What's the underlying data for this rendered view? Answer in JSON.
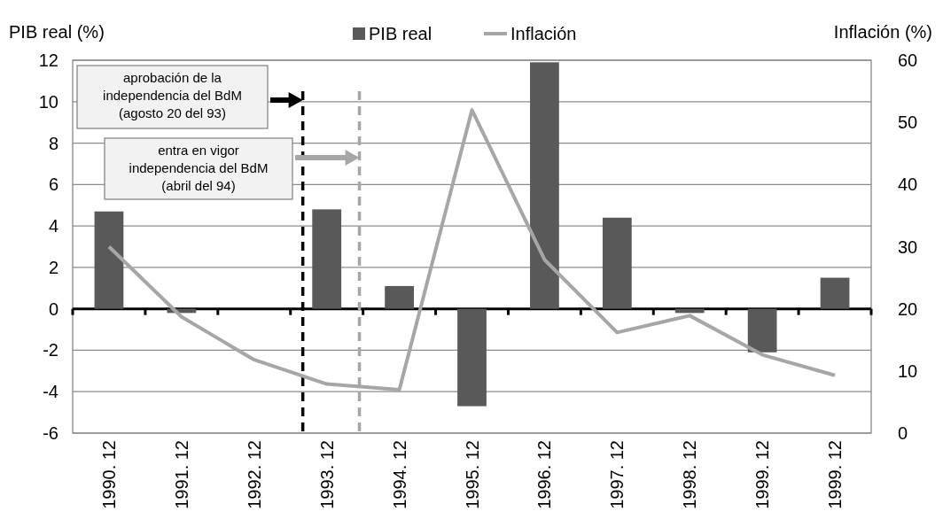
{
  "chart_data": {
    "type": "bar",
    "ylabel": "PIB  real (%)",
    "y2label": "Inflación (%)",
    "categories": [
      "1990. 12",
      "1991. 12",
      "1992. 12",
      "1993. 12",
      "1994. 12",
      "1995. 12",
      "1996. 12",
      "1997. 12",
      "1998. 12",
      "1999. 12",
      "1999. 12"
    ],
    "series": [
      {
        "name": "PIB real",
        "color": "#595959",
        "values": [
          4.7,
          -0.2,
          null,
          4.8,
          1.1,
          -4.7,
          11.9,
          4.4,
          -0.2,
          -2.1,
          1.5
        ]
      },
      {
        "name": "Inflación",
        "type": "line",
        "axis": "y2",
        "color": "#a6a6a6",
        "values": [
          30,
          18.7,
          11.8,
          7.9,
          7.0,
          52,
          27.9,
          16.2,
          18.9,
          12.6,
          9.3
        ]
      }
    ],
    "ylim": [
      -6,
      12
    ],
    "yticks": [
      -6,
      -4,
      -2,
      0,
      2,
      4,
      6,
      8,
      10,
      12
    ],
    "y2lim": [
      0,
      60
    ],
    "y2ticks": [
      0,
      10,
      20,
      30,
      40,
      50,
      60
    ],
    "ref_lines": [
      {
        "axis": "x",
        "value": "1993. 12",
        "color": "#000000",
        "line_style": "dashed"
      },
      {
        "axis": "x",
        "value": "1994. 12",
        "color": "#a6a6a6",
        "line_style": "dashed"
      }
    ],
    "annotations": [
      "aprobación de la\nindependencia del BdM\n(agosto 20 del 93)",
      "entra en vigor\nindependencia del BdM\n(abril del 94)"
    ],
    "grid": "y",
    "legend": "top",
    "line_style": "solid",
    "marker": "none"
  }
}
